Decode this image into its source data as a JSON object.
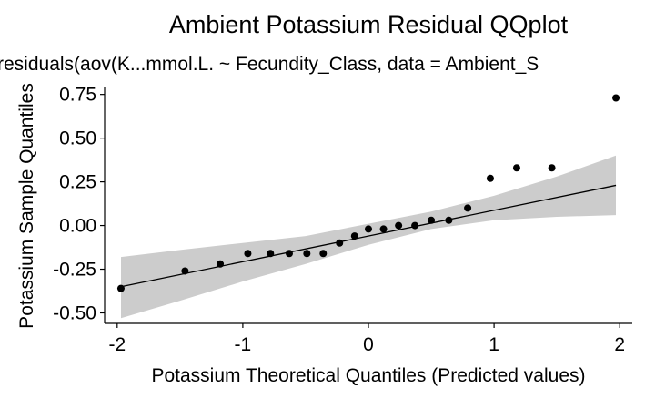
{
  "chart_data": {
    "type": "scatter",
    "title": "Ambient Potassium Residual QQplot",
    "subtitle": "residuals(aov(K...mmol.L. ~ Fecundity_Class, data = Ambient_S",
    "xlabel": "Potassium Theoretical Quantiles (Predicted values)",
    "ylabel": "Potassium Sample Quantiles",
    "xlim": [
      -2.1,
      2.1
    ],
    "ylim": [
      -0.56,
      0.79
    ],
    "xticks": [
      -2,
      -1,
      0,
      1,
      2
    ],
    "xtick_labels": [
      "-2",
      "-1",
      "0",
      "1",
      "2"
    ],
    "yticks": [
      -0.5,
      -0.25,
      0,
      0.25,
      0.5,
      0.75
    ],
    "ytick_labels": [
      "-0.50",
      "-0.25",
      "0.00",
      "0.25",
      "0.50",
      "0.75"
    ],
    "grid": false,
    "points": {
      "x": [
        -1.97,
        -1.46,
        -1.18,
        -0.96,
        -0.78,
        -0.63,
        -0.49,
        -0.36,
        -0.23,
        -0.11,
        0.0,
        0.12,
        0.24,
        0.37,
        0.5,
        0.64,
        0.79,
        0.97,
        1.18,
        1.46,
        1.97
      ],
      "y": [
        -0.36,
        -0.26,
        -0.22,
        -0.16,
        -0.16,
        -0.16,
        -0.16,
        -0.16,
        -0.1,
        -0.06,
        -0.02,
        -0.02,
        0.0,
        0.0,
        0.03,
        0.03,
        0.1,
        0.27,
        0.33,
        0.33,
        0.73
      ]
    },
    "reference_line": {
      "x": [
        -1.97,
        1.97
      ],
      "y": [
        -0.35,
        0.23
      ]
    },
    "confidence_band": {
      "x": [
        -1.97,
        -1.5,
        -1.0,
        -0.5,
        0.0,
        0.5,
        1.0,
        1.5,
        1.97
      ],
      "lower": [
        -0.53,
        -0.43,
        -0.32,
        -0.22,
        -0.11,
        -0.02,
        0.03,
        0.05,
        0.06
      ],
      "upper": [
        -0.18,
        -0.14,
        -0.1,
        -0.06,
        0.01,
        0.08,
        0.17,
        0.28,
        0.4
      ]
    },
    "colors": {
      "points": "#000000",
      "band": "#cccccc",
      "line": "#000000",
      "axis": "#000000"
    }
  }
}
